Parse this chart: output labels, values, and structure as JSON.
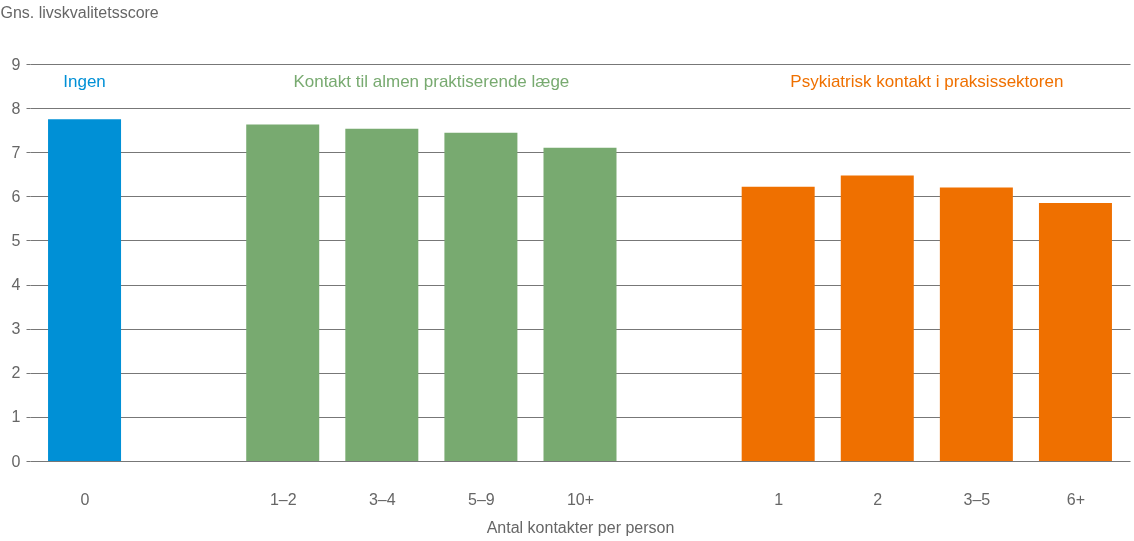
{
  "chart_data": {
    "type": "bar",
    "xlabel": "Antal kontakter per person",
    "ylabel": "Gns. livskvalitetsscore",
    "categories": [
      "0",
      null,
      "1–2",
      "3–4",
      "5–9",
      "10+",
      null,
      "1",
      "2",
      "3–5",
      "6+"
    ],
    "series": [
      {
        "name": "Ingen",
        "color": "#0090d6",
        "values": [
          7.75,
          null,
          null,
          null,
          null,
          null,
          null,
          null,
          null,
          null,
          null
        ]
      },
      {
        "name": "Kontakt til almen praktiserende læge",
        "color": "#78aa70",
        "values": [
          null,
          null,
          7.63,
          7.53,
          7.44,
          7.1,
          null,
          null,
          null,
          null,
          null
        ]
      },
      {
        "name": "Psykiatrisk kontakt i praksissektoren",
        "color": "#ef7000",
        "values": [
          null,
          null,
          null,
          null,
          null,
          null,
          null,
          6.22,
          6.47,
          6.2,
          5.85
        ]
      }
    ],
    "ylim": [
      0,
      9
    ],
    "yticks": [
      0,
      1,
      2,
      3,
      4,
      5,
      6,
      7,
      8,
      9
    ],
    "grid": "y",
    "legend": false
  }
}
